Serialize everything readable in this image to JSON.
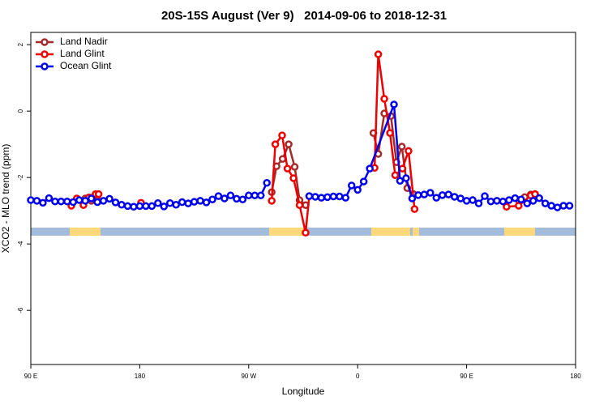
{
  "chart_data": {
    "type": "line",
    "title": "20S-15S August (Ver 9)   2014-09-06 to 2018-12-31",
    "x_label": "Longitude",
    "y_label": "XCO2 - MLO trend (ppm)",
    "xlim": [
      90,
      540
    ],
    "xticks": [
      {
        "value": 90,
        "label": "90 E"
      },
      {
        "value": 180,
        "label": "180"
      },
      {
        "value": 270,
        "label": "90 W"
      },
      {
        "value": 360,
        "label": "0"
      },
      {
        "value": 450,
        "label": "90 E"
      },
      {
        "value": 540,
        "label": "180"
      }
    ],
    "ylim": [
      -7.63,
      2.37
    ],
    "yticks": [
      2,
      0,
      -2,
      -4,
      -6
    ],
    "legend": "top-left",
    "series": [
      {
        "name": "Land Nadir",
        "color": "#a52a2a",
        "x": [
          135,
          140,
          145,
          200,
          289,
          293,
          298,
          303,
          308,
          312,
          317,
          340,
          373,
          377,
          382,
          387.5,
          392,
          396.5,
          401,
          406,
          450,
          493,
          498,
          503,
          506.5
        ],
        "values": [
          -2.63,
          -2.7,
          -2.56,
          null,
          -2.44,
          -1.66,
          -1.44,
          -1.0,
          -1.68,
          -2.68,
          -2.83,
          null,
          -0.66,
          -1.29,
          -0.07,
          -0.15,
          -1.54,
          -1.07,
          -2.32,
          -2.5,
          null,
          -2.68,
          -2.59,
          -2.51,
          -2.5
        ]
      },
      {
        "name": "Land Glint",
        "color": "#ee0000",
        "x": [
          123.5,
          128,
          133.5,
          138,
          143.5,
          146,
          160,
          181,
          250,
          289,
          292,
          297.6,
          302,
          307,
          312,
          317,
          320,
          340,
          374,
          377,
          382,
          386.7,
          391,
          397,
          402,
          407,
          450,
          483,
          493,
          503,
          506.5
        ],
        "values": [
          -2.85,
          -2.63,
          -2.83,
          -2.6,
          -2.5,
          -2.5,
          null,
          -2.76,
          null,
          -2.7,
          -1.0,
          -0.73,
          -1.73,
          -2.02,
          -2.83,
          -3.66,
          -2.56,
          null,
          -1.71,
          1.71,
          0.37,
          -0.66,
          -1.93,
          -1.73,
          -1.2,
          -2.95,
          null,
          -2.88,
          -2.85,
          -2.54,
          -2.5
        ]
      },
      {
        "name": "Ocean Glint",
        "color": "#0000ee",
        "x": [
          90,
          95,
          100,
          105,
          110,
          115,
          120,
          125,
          130,
          135,
          140,
          145,
          150,
          155,
          160,
          165,
          170,
          175,
          180,
          185,
          190,
          195,
          200,
          205,
          210,
          215,
          220,
          225,
          230,
          235,
          240,
          245,
          250,
          255,
          260,
          265,
          270,
          275,
          280,
          285,
          300,
          320,
          325,
          330,
          335,
          340,
          345,
          350,
          355,
          360,
          365,
          370,
          390,
          395,
          400,
          405,
          410,
          415,
          420,
          425,
          430,
          435,
          440,
          445,
          450,
          455,
          460,
          465,
          470,
          475,
          480,
          485,
          490,
          495,
          500,
          505,
          510,
          515,
          520,
          525,
          530,
          535
        ],
        "values": [
          -2.68,
          -2.7,
          -2.76,
          -2.62,
          -2.72,
          -2.72,
          -2.72,
          -2.74,
          -2.68,
          -2.7,
          -2.63,
          -2.74,
          -2.7,
          -2.64,
          -2.75,
          -2.82,
          -2.86,
          -2.88,
          -2.86,
          -2.86,
          -2.86,
          -2.77,
          -2.87,
          -2.77,
          -2.82,
          -2.74,
          -2.78,
          -2.73,
          -2.7,
          -2.75,
          -2.66,
          -2.56,
          -2.63,
          -2.54,
          -2.64,
          -2.66,
          -2.54,
          -2.54,
          -2.54,
          -2.16,
          null,
          -2.56,
          -2.58,
          -2.61,
          -2.59,
          -2.57,
          -2.57,
          -2.61,
          -2.24,
          -2.37,
          -2.12,
          -1.73,
          0.2,
          -2.1,
          -2.02,
          -2.63,
          -2.53,
          -2.51,
          -2.46,
          -2.61,
          -2.53,
          -2.51,
          -2.58,
          -2.63,
          -2.7,
          -2.68,
          -2.78,
          -2.56,
          -2.72,
          -2.7,
          -2.72,
          -2.68,
          -2.62,
          -2.66,
          -2.78,
          -2.7,
          -2.62,
          -2.78,
          -2.85,
          -2.9,
          -2.85,
          -2.85
        ]
      }
    ]
  }
}
